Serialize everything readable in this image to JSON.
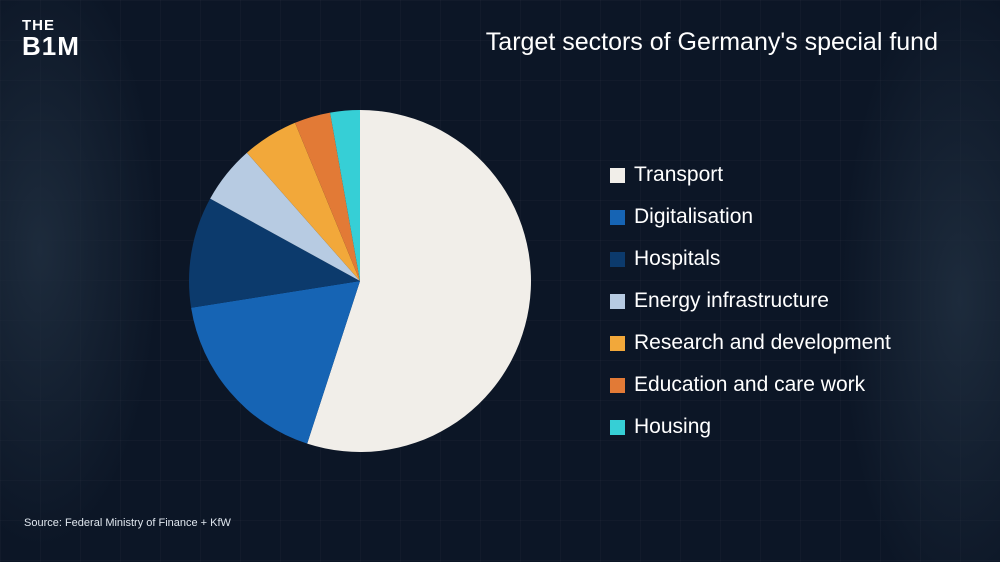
{
  "logo": {
    "line1": "THE",
    "line2": "B1M"
  },
  "source": "Source: Federal Ministry of Finance + KfW",
  "chart_data": {
    "type": "pie",
    "title": "Target sectors of Germany's special fund",
    "unit": "percent (estimated from slice angles)",
    "legend_position": "right",
    "slices": [
      {
        "label": "Transport",
        "value": 55,
        "color": "#f1eee9"
      },
      {
        "label": "Digitalisation",
        "value": 17.5,
        "color": "#1664b4"
      },
      {
        "label": "Hospitals",
        "value": 10.5,
        "color": "#0c3a6c"
      },
      {
        "label": "Energy infrastructure",
        "value": 5.5,
        "color": "#b7cbe2"
      },
      {
        "label": "Research and development",
        "value": 5.3,
        "color": "#f2a83a"
      },
      {
        "label": "Education and care work",
        "value": 3.4,
        "color": "#e27a36"
      },
      {
        "label": "Housing",
        "value": 2.8,
        "color": "#36cfd6"
      }
    ]
  }
}
